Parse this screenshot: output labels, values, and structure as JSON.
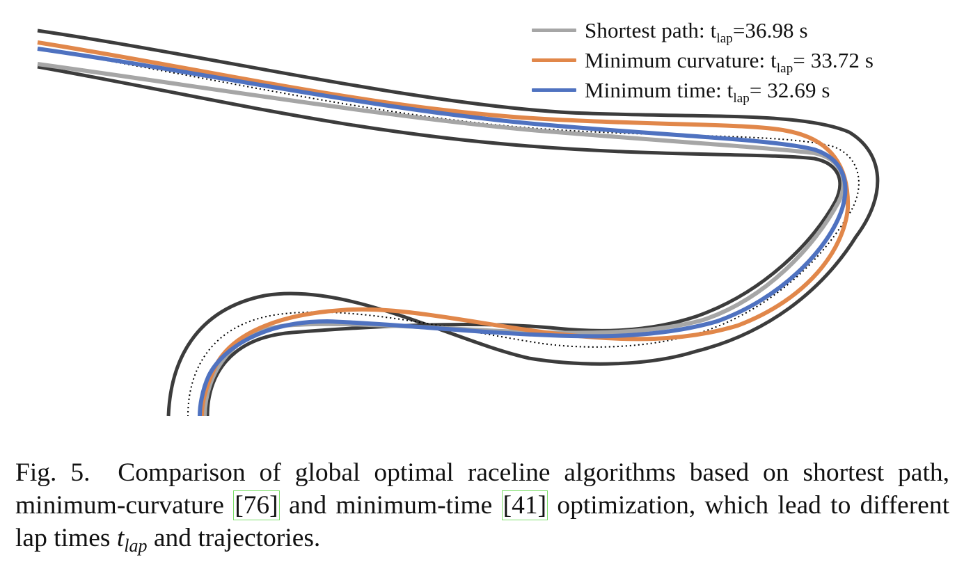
{
  "figure": {
    "legend": [
      {
        "name": "Shortest path",
        "label_prefix": "Shortest path: t",
        "sub": "lap",
        "label_suffix": "=36.98 s",
        "lap_time_s": 36.98,
        "color": "#a6a6a6"
      },
      {
        "name": "Minimum curvature",
        "label_prefix": "Minimum curvature: t",
        "sub": "lap",
        "label_suffix": "= 33.72 s",
        "lap_time_s": 33.72,
        "color": "#e1874a"
      },
      {
        "name": "Minimum time",
        "label_prefix": "Minimum time: t",
        "sub": "lap",
        "label_suffix": "= 32.69 s",
        "lap_time_s": 32.69,
        "color": "#4f72c0"
      }
    ],
    "colors": {
      "track_boundary": "#3c3c3c",
      "centerline": "#000000"
    }
  },
  "caption": {
    "fig_label": "Fig. 5.",
    "text_1": "Comparison of global optimal raceline algorithms based on shortest path, minimum-curvature",
    "ref_1": "[76]",
    "text_2": "and minimum-time",
    "ref_2": "[41]",
    "text_3": "optimization, which lead to different lap times",
    "math_base": "t",
    "math_sub": "lap",
    "text_4": "and trajectories."
  }
}
